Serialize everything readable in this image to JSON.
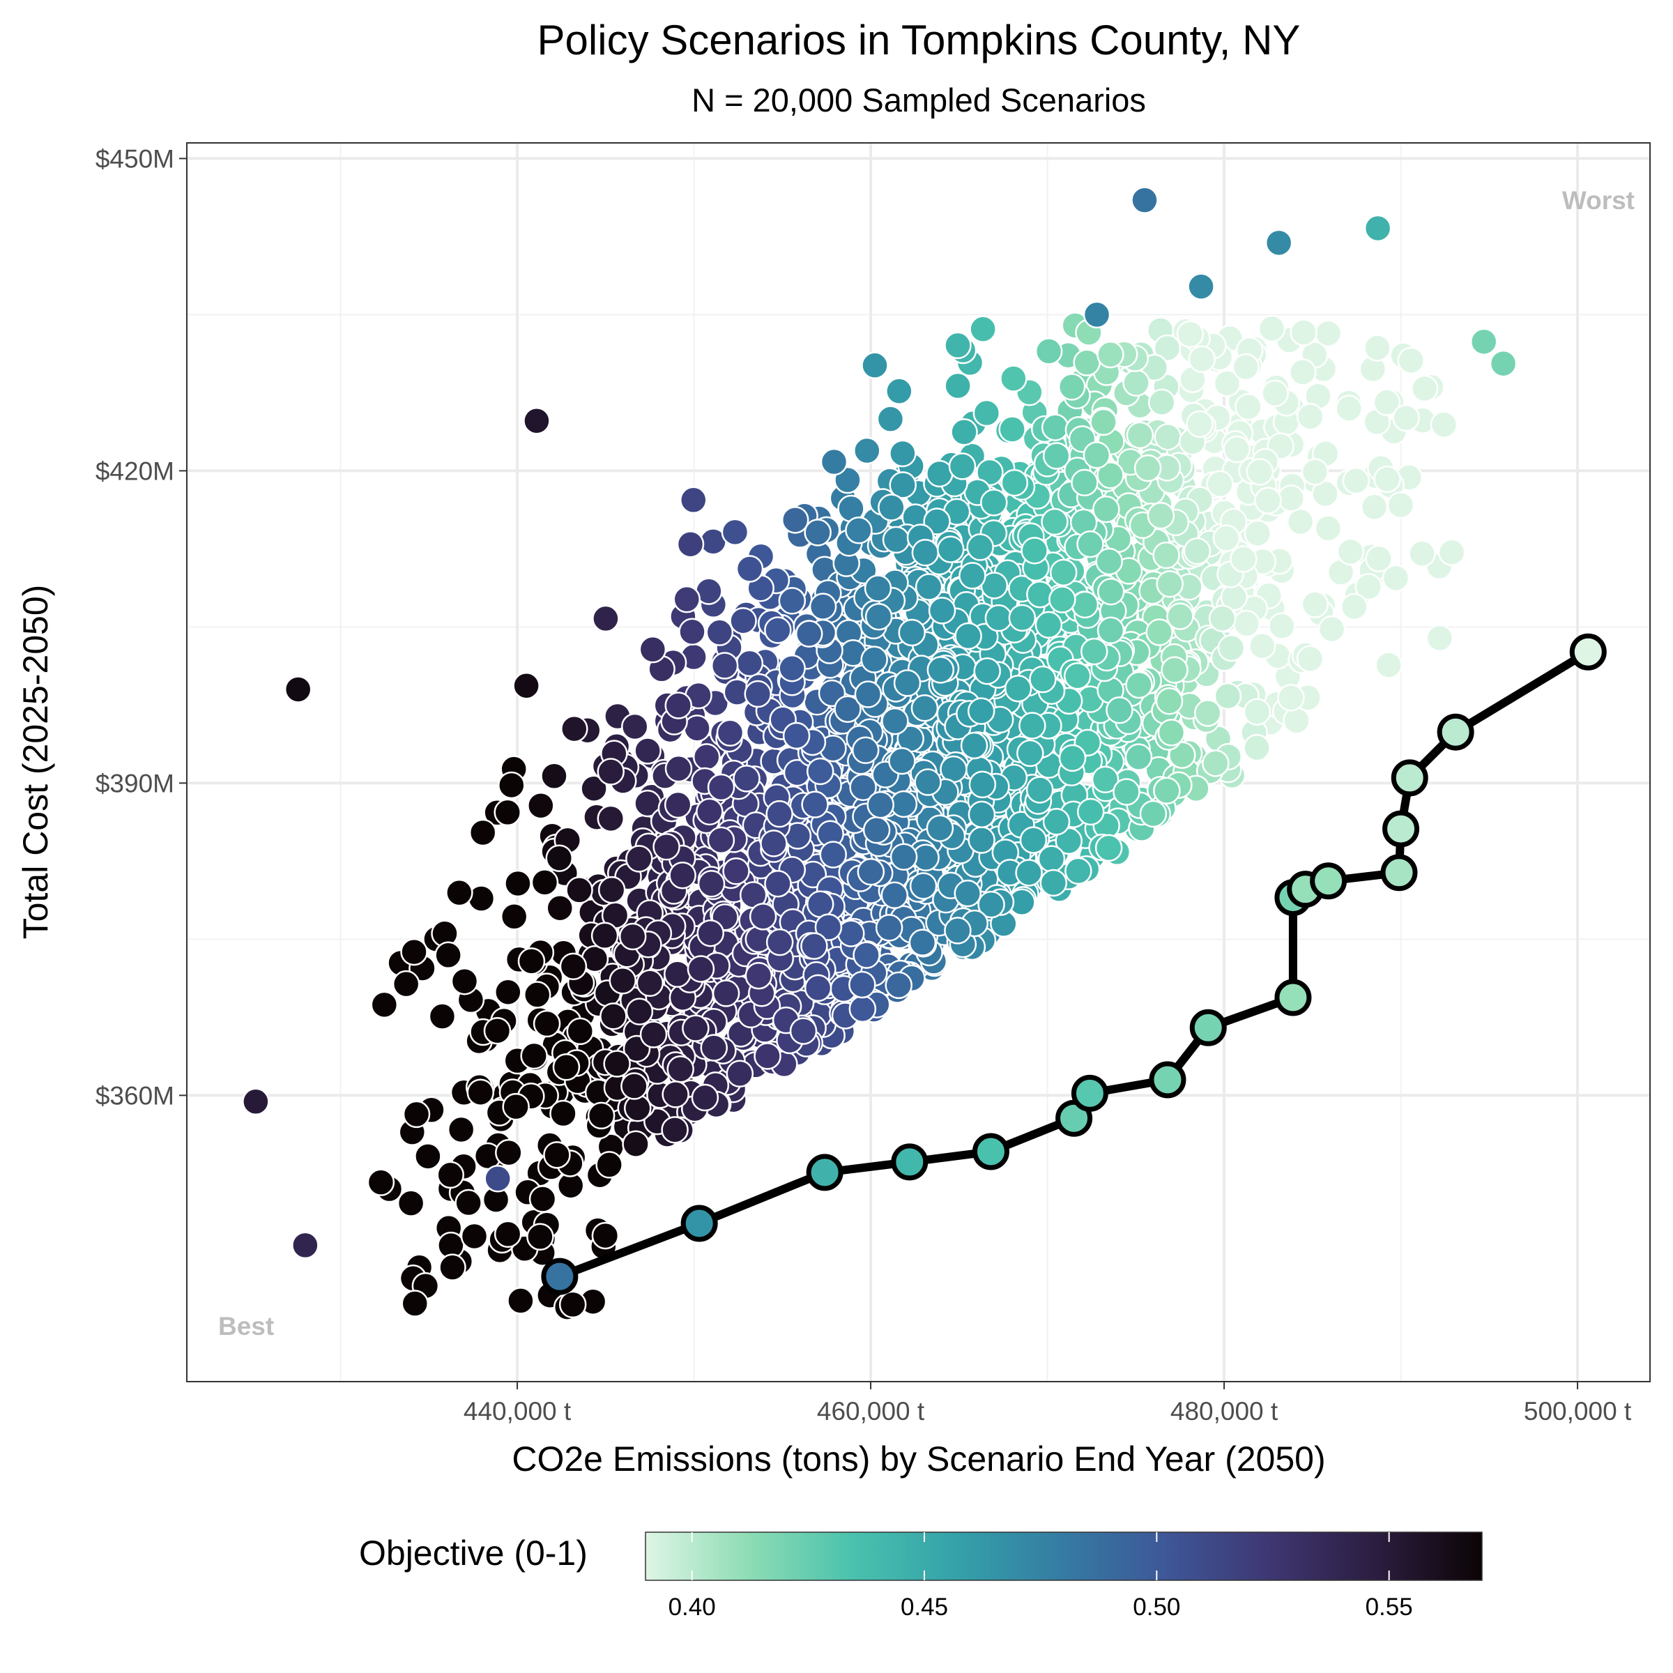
{
  "chart_data": {
    "type": "scatter",
    "title": "Policy Scenarios in Tompkins County, NY",
    "subtitle": "N = 20,000 Sampled Scenarios",
    "xlabel": "CO2e Emissions (tons) by Scenario End Year (2050)",
    "ylabel": "Total Cost (2025-2050)",
    "xlim": [
      421300,
      504100
    ],
    "ylim": [
      332500,
      451500
    ],
    "x_ticks": [
      440000,
      460000,
      480000,
      500000
    ],
    "x_tick_labels": [
      "440,000 t",
      "460,000 t",
      "480,000 t",
      "500,000 t"
    ],
    "y_ticks": [
      360,
      390,
      420,
      450
    ],
    "y_tick_labels": [
      "$360M",
      "$390M",
      "$420M",
      "$450M"
    ],
    "grid": true,
    "corner_labels": {
      "best": "Best",
      "worst": "Worst"
    },
    "legend": {
      "title": "Objective (0-1)",
      "position": "bottom",
      "range": [
        0.39,
        0.57
      ],
      "ticks": [
        0.4,
        0.45,
        0.5,
        0.55
      ],
      "tick_labels": [
        "0.40",
        "0.45",
        "0.50",
        "0.55"
      ],
      "colormap": [
        "#def5e5",
        "#8cdcb4",
        "#49c1ad",
        "#34a0a9",
        "#357ba3",
        "#3e5697",
        "#3e3671",
        "#2b1d3f",
        "#0b0405"
      ]
    },
    "pareto_front": {
      "x": [
        442400,
        450300,
        457400,
        462200,
        466800,
        471500,
        472400,
        476800,
        479100,
        483900,
        483900,
        484600,
        485900,
        489900,
        490000,
        490500,
        493100,
        500600
      ],
      "y": [
        342.6,
        347.7,
        352.6,
        353.6,
        354.6,
        357.8,
        360.2,
        361.5,
        366.5,
        369.4,
        379.0,
        379.8,
        380.6,
        381.4,
        385.6,
        390.5,
        394.9,
        402.6
      ],
      "objective": [
        0.485,
        0.465,
        0.445,
        0.442,
        0.435,
        0.425,
        0.43,
        0.42,
        0.42,
        0.41,
        0.42,
        0.41,
        0.41,
        0.405,
        0.4,
        0.4,
        0.4,
        0.39
      ]
    },
    "outliers": {
      "x": [
        427600,
        425200,
        428000,
        441100,
        475500,
        483100,
        488700,
        494700,
        495800,
        472800,
        478700,
        438900
      ],
      "y": [
        399.0,
        359.4,
        345.6,
        424.8,
        446.0,
        441.9,
        443.3,
        432.4,
        430.3,
        435.0,
        437.7,
        352.0
      ],
      "objective": [
        0.565,
        0.55,
        0.54,
        0.555,
        0.485,
        0.47,
        0.445,
        0.42,
        0.42,
        0.475,
        0.47,
        0.51
      ]
    }
  }
}
